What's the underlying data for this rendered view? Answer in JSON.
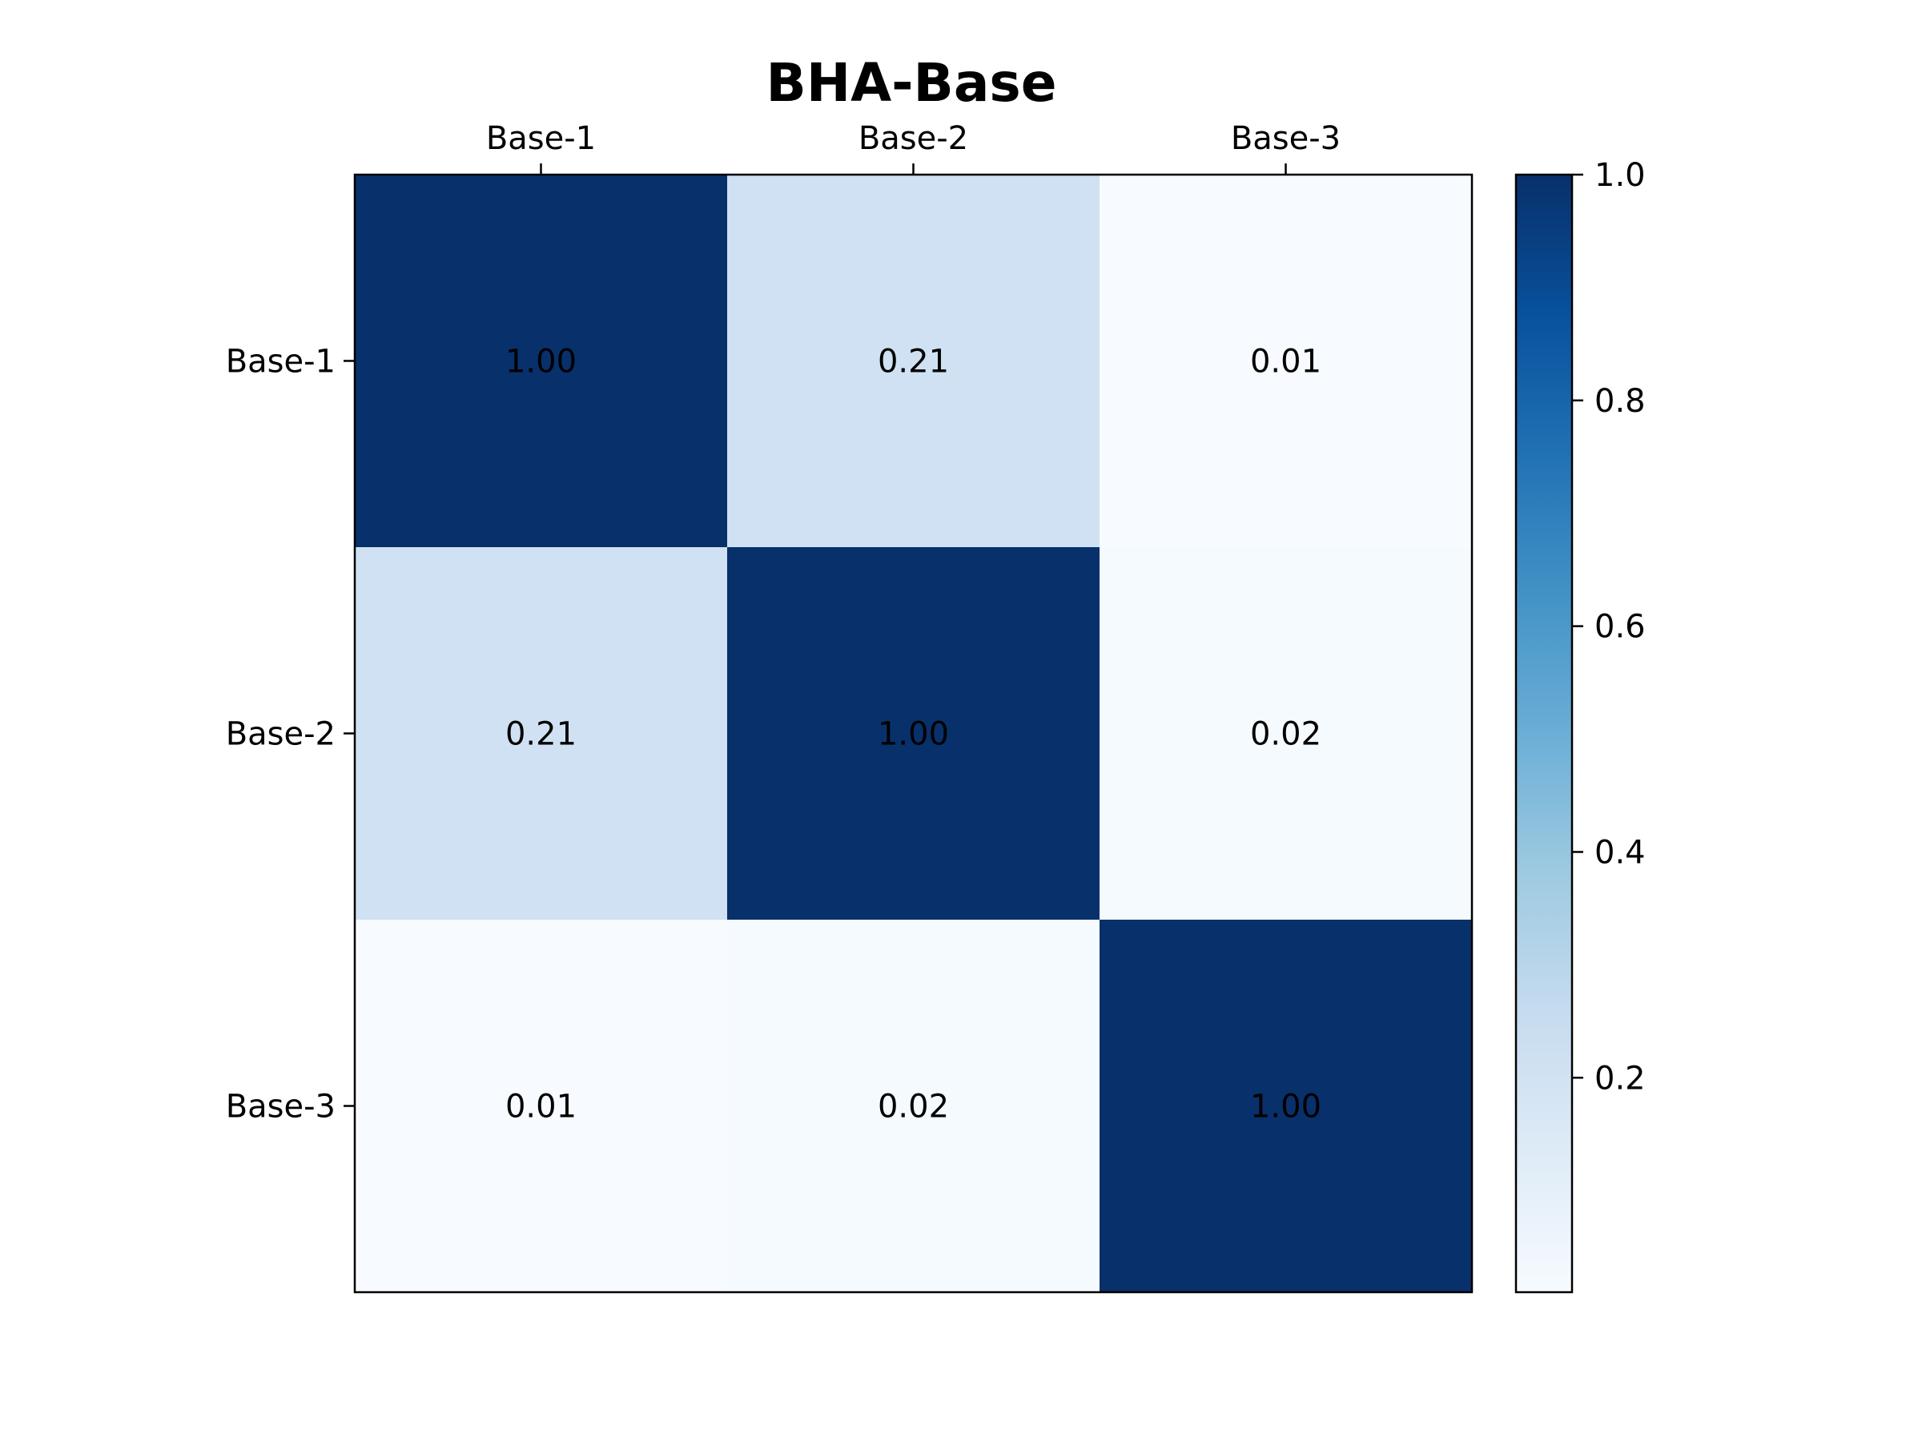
{
  "chart_data": {
    "type": "heatmap",
    "title": "BHA-Base",
    "x_categories": [
      "Base-1",
      "Base-2",
      "Base-3"
    ],
    "y_categories": [
      "Base-1",
      "Base-2",
      "Base-3"
    ],
    "x_tick_position": "top",
    "values": [
      [
        1.0,
        0.21,
        0.01
      ],
      [
        0.21,
        1.0,
        0.02
      ],
      [
        0.01,
        0.02,
        1.0
      ]
    ],
    "cell_labels": [
      [
        "1.00",
        "0.21",
        "0.01"
      ],
      [
        "0.21",
        "1.00",
        "0.02"
      ],
      [
        "0.01",
        "0.02",
        "1.00"
      ]
    ],
    "colormap": "Blues",
    "color_range": [
      0.01,
      1.0
    ],
    "colorbar": {
      "ticks": [
        0.2,
        0.4,
        0.6,
        0.8,
        1.0
      ],
      "tick_labels": [
        "0.2",
        "0.4",
        "0.6",
        "0.8",
        "1.0"
      ],
      "placement": "right"
    },
    "colors": {
      "low": "#f7fbff",
      "high": "#08306b"
    },
    "grid": false
  }
}
